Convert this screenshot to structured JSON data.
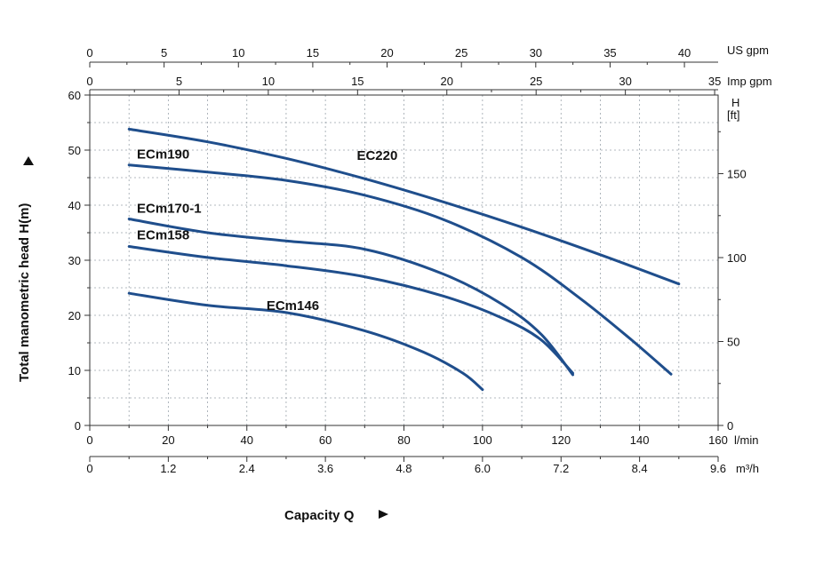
{
  "chart_data": {
    "type": "line",
    "title": "",
    "xlabel": "Capacity Q",
    "ylabel": "Total manometric head H(m)",
    "xlim": [
      0,
      160
    ],
    "ylim": [
      0,
      60
    ],
    "x_unit": "l/min",
    "y_unit": "m",
    "x_ticks": [
      "0",
      "20",
      "40",
      "60",
      "80",
      "100",
      "120",
      "140",
      "160"
    ],
    "y_ticks": [
      "0",
      "10",
      "20",
      "30",
      "40",
      "50",
      "60"
    ],
    "secondary_axes": {
      "us_gpm": {
        "unit": "US gpm",
        "labels": [
          "0",
          "5",
          "10",
          "15",
          "20",
          "25",
          "30",
          "35",
          "40"
        ],
        "values": [
          0,
          5,
          10,
          15,
          20,
          25,
          30,
          35,
          40
        ]
      },
      "imp_gpm": {
        "unit": "Imp gpm",
        "labels": [
          "0",
          "5",
          "10",
          "15",
          "20",
          "25",
          "30",
          "35"
        ],
        "values": [
          0,
          5,
          10,
          15,
          20,
          25,
          30,
          35
        ]
      },
      "m3h": {
        "unit": "m³/h",
        "labels": [
          "0",
          "1.2",
          "2.4",
          "3.6",
          "4.8",
          "6.0",
          "7.2",
          "8.4",
          "9.6"
        ],
        "values": [
          0,
          1.2,
          2.4,
          3.6,
          4.8,
          6.0,
          7.2,
          8.4,
          9.6
        ]
      },
      "feet": {
        "unit_line1": "H",
        "unit_line2": "[ft]",
        "labels": [
          "0",
          "50",
          "100",
          "150"
        ],
        "values": [
          0,
          50,
          100,
          150
        ]
      }
    },
    "series": [
      {
        "name": "EC220",
        "x": [
          10,
          30,
          50,
          70,
          90,
          110,
          130,
          150
        ],
        "y": [
          53.8,
          51.5,
          48.5,
          44.8,
          40.6,
          36.0,
          31.0,
          25.7
        ]
      },
      {
        "name": "ECm190",
        "x": [
          10,
          30,
          50,
          70,
          90,
          110,
          125,
          138,
          148
        ],
        "y": [
          47.3,
          46.0,
          44.5,
          41.8,
          37.4,
          30.5,
          23.0,
          15.5,
          9.3
        ]
      },
      {
        "name": "ECm170-1",
        "x": [
          10,
          30,
          50,
          70,
          90,
          105,
          115,
          123
        ],
        "y": [
          37.5,
          35.0,
          33.5,
          32.0,
          27.5,
          22.0,
          16.5,
          9.2
        ]
      },
      {
        "name": "ECm158",
        "x": [
          10,
          30,
          50,
          70,
          90,
          105,
          115,
          123
        ],
        "y": [
          32.5,
          30.5,
          29.0,
          27.0,
          23.5,
          19.5,
          15.5,
          9.5
        ]
      },
      {
        "name": "ECm146",
        "x": [
          10,
          30,
          50,
          70,
          85,
          95,
          100
        ],
        "y": [
          24.0,
          21.8,
          20.5,
          17.2,
          13.3,
          9.5,
          6.5
        ]
      }
    ],
    "curve_labels": [
      {
        "text": "EC220",
        "x": 68,
        "y": 48.2
      },
      {
        "text": "ECm190",
        "x": 12,
        "y": 48.5
      },
      {
        "text": "ECm170-1",
        "x": 12,
        "y": 38.6
      },
      {
        "text": "ECm158",
        "x": 12,
        "y": 33.8
      },
      {
        "text": "ECm146",
        "x": 45,
        "y": 21.0
      }
    ]
  }
}
